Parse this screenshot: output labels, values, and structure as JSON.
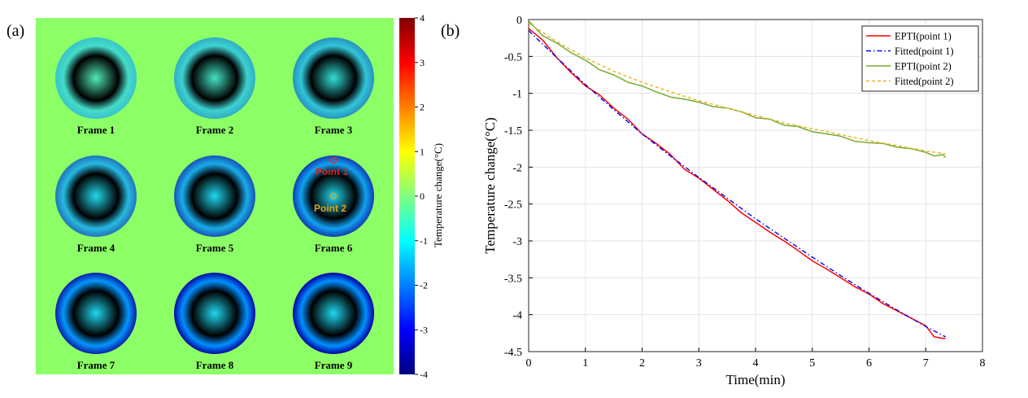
{
  "panel_a": {
    "label": "(a)",
    "frames": [
      {
        "label": "Frame 1",
        "intensity": 0.3
      },
      {
        "label": "Frame 2",
        "intensity": 0.55
      },
      {
        "label": "Frame 3",
        "intensity": 0.85
      },
      {
        "label": "Frame 4",
        "intensity": 1.15
      },
      {
        "label": "Frame 5",
        "intensity": 1.5
      },
      {
        "label": "Frame 6",
        "intensity": 1.75
      },
      {
        "label": "Frame 7",
        "intensity": 2.05
      },
      {
        "label": "Frame 8",
        "intensity": 2.3
      },
      {
        "label": "Frame 9",
        "intensity": 2.55
      }
    ],
    "point1_label": "Point 1",
    "point2_label": "Point 2",
    "colorbar": {
      "title": "Temperature change(°C)",
      "min": -4,
      "max": 4,
      "ticks": [
        "4",
        "3",
        "2",
        "1",
        "0",
        "-1",
        "-2",
        "-3",
        "-4"
      ]
    }
  },
  "panel_b": {
    "label": "(b)"
  },
  "colors": {
    "background_green": "#8cff66",
    "ept1": "#ff0000",
    "fit1": "#0000ff",
    "ept2": "#77ac30",
    "fit2": "#edb120"
  },
  "chart_data": {
    "type": "line",
    "title": "",
    "xlabel": "Time(min)",
    "ylabel": "Temperature change(°C)",
    "xlim": [
      0,
      8
    ],
    "ylim": [
      -4.5,
      0
    ],
    "xticks": [
      "0",
      "1",
      "2",
      "3",
      "4",
      "5",
      "6",
      "7",
      "8"
    ],
    "yticks": [
      "0",
      "-0.5",
      "-1",
      "-1.5",
      "-2",
      "-2.5",
      "-3",
      "-3.5",
      "-4",
      "-4.5"
    ],
    "grid": true,
    "legend_position": "top-right",
    "series": [
      {
        "name": "EPTI(point 1)",
        "style": "solid",
        "x": [
          0,
          0.25,
          0.5,
          0.75,
          1,
          1.25,
          1.5,
          1.75,
          2,
          2.25,
          2.5,
          2.75,
          3,
          3.25,
          3.5,
          3.75,
          4,
          4.25,
          4.5,
          4.75,
          5,
          5.25,
          5.5,
          5.75,
          6,
          6.25,
          6.5,
          6.75,
          7,
          7.15,
          7.3,
          7.35
        ],
        "y": [
          -0.12,
          -0.28,
          -0.52,
          -0.72,
          -0.9,
          -1.02,
          -1.2,
          -1.35,
          -1.55,
          -1.68,
          -1.83,
          -2.03,
          -2.15,
          -2.3,
          -2.45,
          -2.62,
          -2.75,
          -2.88,
          -3.0,
          -3.13,
          -3.27,
          -3.38,
          -3.5,
          -3.62,
          -3.72,
          -3.85,
          -3.95,
          -4.05,
          -4.15,
          -4.3,
          -4.32,
          -4.32
        ]
      },
      {
        "name": "Fitted(point 1)",
        "style": "dashdot",
        "x": [
          0,
          0.5,
          1,
          1.5,
          2,
          2.5,
          3,
          3.5,
          4,
          4.5,
          5,
          5.5,
          6,
          6.5,
          7,
          7.35
        ],
        "y": [
          -0.15,
          -0.52,
          -0.88,
          -1.22,
          -1.55,
          -1.85,
          -2.14,
          -2.42,
          -2.7,
          -2.96,
          -3.22,
          -3.47,
          -3.71,
          -3.94,
          -4.16,
          -4.3
        ]
      },
      {
        "name": "EPTI(point 2)",
        "style": "solid",
        "x": [
          0,
          0.25,
          0.5,
          0.75,
          1,
          1.25,
          1.5,
          1.75,
          2,
          2.25,
          2.5,
          2.75,
          3,
          3.25,
          3.5,
          3.75,
          4,
          4.25,
          4.5,
          4.75,
          5,
          5.25,
          5.5,
          5.75,
          6,
          6.25,
          6.5,
          6.75,
          7,
          7.15,
          7.3,
          7.35
        ],
        "y": [
          -0.02,
          -0.22,
          -0.32,
          -0.45,
          -0.55,
          -0.68,
          -0.75,
          -0.85,
          -0.9,
          -0.98,
          -1.05,
          -1.08,
          -1.12,
          -1.18,
          -1.2,
          -1.25,
          -1.33,
          -1.35,
          -1.43,
          -1.45,
          -1.52,
          -1.55,
          -1.58,
          -1.65,
          -1.67,
          -1.68,
          -1.73,
          -1.75,
          -1.8,
          -1.85,
          -1.83,
          -1.87
        ]
      },
      {
        "name": "Fitted(point 2)",
        "style": "dashed",
        "x": [
          0,
          0.5,
          1,
          1.5,
          2,
          2.5,
          3,
          3.5,
          4,
          4.5,
          5,
          5.5,
          6,
          6.5,
          7,
          7.35
        ],
        "y": [
          -0.05,
          -0.3,
          -0.52,
          -0.7,
          -0.85,
          -0.98,
          -1.1,
          -1.2,
          -1.3,
          -1.4,
          -1.48,
          -1.56,
          -1.64,
          -1.71,
          -1.78,
          -1.82
        ]
      }
    ]
  }
}
